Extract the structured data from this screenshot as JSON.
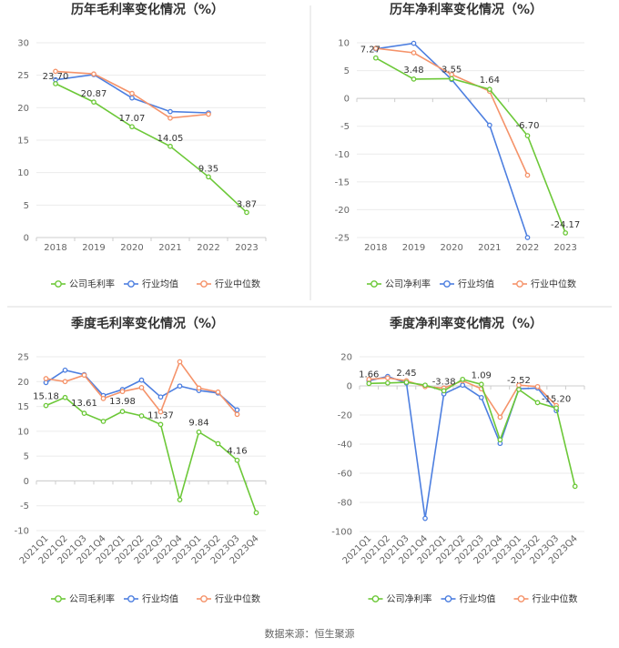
{
  "source": "数据来源：恒生聚源",
  "colors": {
    "company": "#6cc838",
    "industry_avg": "#4d7fe0",
    "industry_median": "#f5936a",
    "grid": "#ebebeb",
    "axis": "#cccccc",
    "divider": "#dddddd"
  },
  "chart_data": [
    {
      "type": "line",
      "title": "历年毛利率变化情况（%）",
      "categories": [
        "2018",
        "2019",
        "2020",
        "2021",
        "2022",
        "2023"
      ],
      "ylim": [
        0,
        30
      ],
      "yticks": [
        0,
        5,
        10,
        15,
        20,
        25,
        30
      ],
      "series": [
        {
          "name": "公司毛利率",
          "values": [
            23.7,
            20.87,
            17.07,
            14.05,
            9.35,
            3.87
          ]
        },
        {
          "name": "行业均值",
          "values": [
            24.3,
            25.1,
            21.5,
            19.4,
            19.2,
            null
          ]
        },
        {
          "name": "行业中位数",
          "values": [
            25.6,
            25.2,
            22.2,
            18.4,
            19.0,
            null
          ]
        }
      ],
      "labels": [
        {
          "i": 0,
          "text": "23.70"
        },
        {
          "i": 1,
          "text": "20.87"
        },
        {
          "i": 2,
          "text": "17.07"
        },
        {
          "i": 3,
          "text": "14.05"
        },
        {
          "i": 4,
          "text": "9.35"
        },
        {
          "i": 5,
          "text": "3.87"
        }
      ],
      "legend": [
        "公司毛利率",
        "行业均值",
        "行业中位数"
      ],
      "rotate_x": false
    },
    {
      "type": "line",
      "title": "历年净利率变化情况（%）",
      "categories": [
        "2018",
        "2019",
        "2020",
        "2021",
        "2022",
        "2023"
      ],
      "ylim": [
        -25,
        10
      ],
      "yticks": [
        -25,
        -20,
        -15,
        -10,
        -5,
        0,
        5,
        10
      ],
      "series": [
        {
          "name": "公司净利率",
          "values": [
            7.27,
            3.48,
            3.55,
            1.64,
            -6.7,
            -24.17
          ]
        },
        {
          "name": "行业均值",
          "values": [
            8.9,
            9.9,
            3.4,
            -4.8,
            -25.0,
            null
          ]
        },
        {
          "name": "行业中位数",
          "values": [
            9.0,
            8.2,
            4.3,
            1.3,
            -13.8,
            null
          ]
        }
      ],
      "labels": [
        {
          "i": 0,
          "text": "7.27"
        },
        {
          "i": 1,
          "text": "3.48"
        },
        {
          "i": 2,
          "text": "3.55"
        },
        {
          "i": 3,
          "text": "1.64"
        },
        {
          "i": 4,
          "text": "-6.70"
        },
        {
          "i": 5,
          "text": "-24.17"
        }
      ],
      "legend": [
        "公司净利率",
        "行业均值",
        "行业中位数"
      ],
      "rotate_x": false
    },
    {
      "type": "line",
      "title": "季度毛利率变化情况（%）",
      "categories": [
        "2021Q1",
        "2021Q2",
        "2021Q3",
        "2021Q4",
        "2022Q1",
        "2022Q2",
        "2022Q3",
        "2022Q4",
        "2023Q1",
        "2023Q2",
        "2023Q3",
        "2023Q4"
      ],
      "ylim": [
        -10,
        25
      ],
      "yticks": [
        -10,
        -5,
        0,
        5,
        10,
        15,
        20,
        25
      ],
      "series": [
        {
          "name": "公司毛利率",
          "values": [
            15.18,
            16.8,
            13.61,
            12.0,
            13.98,
            13.1,
            11.37,
            -3.8,
            9.84,
            7.5,
            4.16,
            -6.4
          ]
        },
        {
          "name": "行业均值",
          "values": [
            19.8,
            22.3,
            21.4,
            17.2,
            18.4,
            20.3,
            16.9,
            19.1,
            18.2,
            17.7,
            14.3,
            null
          ]
        },
        {
          "name": "行业中位数",
          "values": [
            20.6,
            20.0,
            21.3,
            16.6,
            18.0,
            18.8,
            13.9,
            24.0,
            18.7,
            17.9,
            13.4,
            null
          ]
        }
      ],
      "labels": [
        {
          "i": 0,
          "text": "15.18"
        },
        {
          "i": 2,
          "text": "13.61"
        },
        {
          "i": 4,
          "text": "13.98"
        },
        {
          "i": 6,
          "text": "11.37"
        },
        {
          "i": 8,
          "text": "9.84"
        },
        {
          "i": 10,
          "text": "4.16"
        }
      ],
      "legend": [
        "公司毛利率",
        "行业均值",
        "行业中位数"
      ],
      "rotate_x": true
    },
    {
      "type": "line",
      "title": "季度净利率变化情况（%）",
      "categories": [
        "2021Q1",
        "2021Q2",
        "2021Q3",
        "2021Q4",
        "2022Q1",
        "2022Q2",
        "2022Q3",
        "2022Q4",
        "2023Q1",
        "2023Q2",
        "2023Q3",
        "2023Q4"
      ],
      "ylim": [
        -100,
        20
      ],
      "yticks": [
        -100,
        -80,
        -60,
        -40,
        -20,
        0,
        20
      ],
      "series": [
        {
          "name": "公司净利率",
          "values": [
            1.66,
            2.0,
            2.45,
            0.5,
            -3.38,
            4.5,
            1.09,
            -37.0,
            -2.52,
            -11.5,
            -15.2,
            -69.0
          ]
        },
        {
          "name": "行业均值",
          "values": [
            3.5,
            6.5,
            2.0,
            -91.0,
            -5.5,
            0.5,
            -8.0,
            -39.5,
            -2.0,
            -1.5,
            -17.0,
            null
          ]
        },
        {
          "name": "行业中位数",
          "values": [
            4.5,
            5.5,
            3.5,
            -0.5,
            -1.5,
            3.5,
            -2.0,
            -21.5,
            0.5,
            -0.5,
            -13.5,
            null
          ]
        }
      ],
      "labels": [
        {
          "i": 0,
          "text": "1.66"
        },
        {
          "i": 2,
          "text": "2.45"
        },
        {
          "i": 4,
          "text": "-3.38"
        },
        {
          "i": 6,
          "text": "1.09"
        },
        {
          "i": 8,
          "text": "-2.52"
        },
        {
          "i": 10,
          "text": "-15.20"
        }
      ],
      "legend": [
        "公司净利率",
        "行业均值",
        "行业中位数"
      ],
      "rotate_x": true
    }
  ]
}
